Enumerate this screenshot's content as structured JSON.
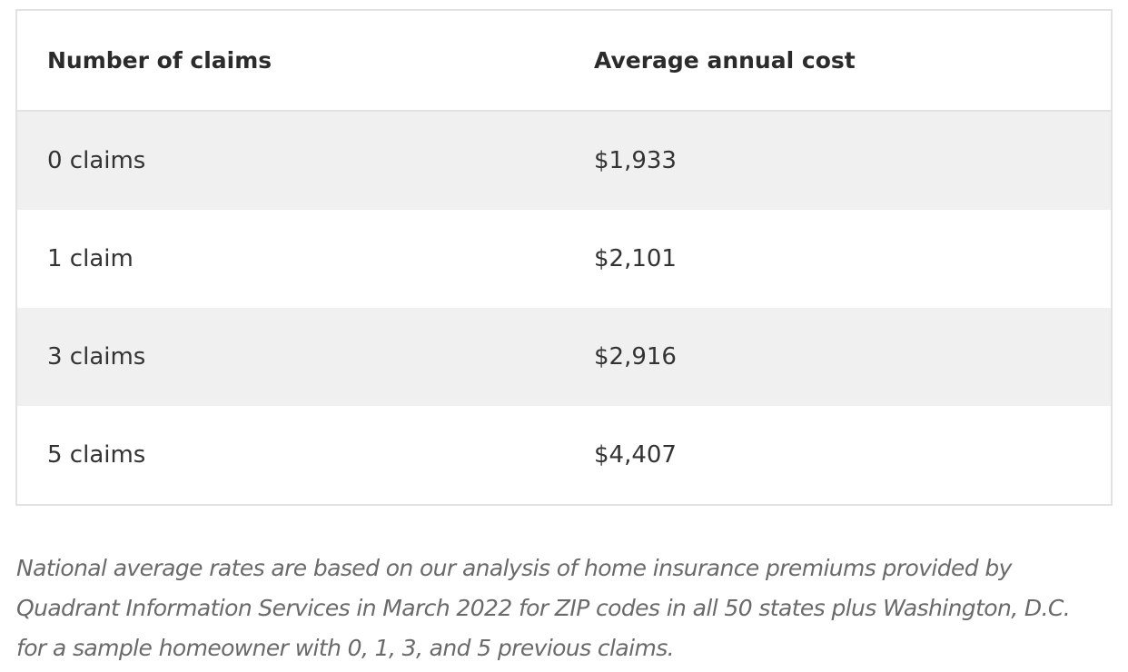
{
  "table": {
    "headers": [
      "Number of claims",
      "Average annual cost"
    ],
    "rows": [
      {
        "claims": "0 claims",
        "cost": "$1,933"
      },
      {
        "claims": "1 claim",
        "cost": "$2,101"
      },
      {
        "claims": "3 claims",
        "cost": "$2,916"
      },
      {
        "claims": "5 claims",
        "cost": "$4,407"
      }
    ]
  },
  "footnote": {
    "line1": "National average rates are based on our analysis of home insurance premiums provided by",
    "line2": "Quadrant Information Services in March 2022 for ZIP codes in all 50 states plus Washington, D.C.",
    "line3": "for a sample homeowner with 0, 1, 3, and 5 previous claims."
  },
  "colors": {
    "border": "#e2e2e2",
    "row_shade": "#f0f0f0",
    "text": "#2b2b2b",
    "footnote_text": "#6a6a6a"
  }
}
